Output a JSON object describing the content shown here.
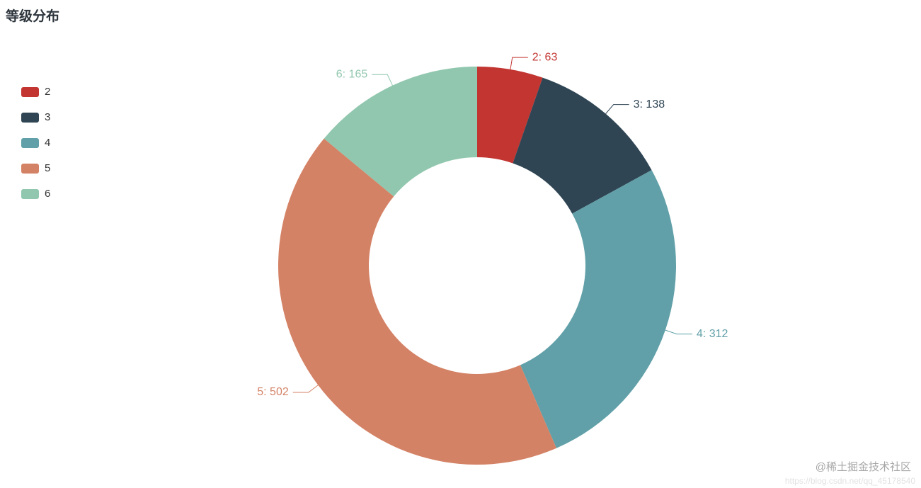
{
  "title": "等级分布",
  "chart_data": {
    "type": "pie",
    "subtype": "donut",
    "title": "等级分布",
    "start_angle_deg": 0,
    "clockwise": true,
    "inner_radius_ratio": 0.545,
    "legend_position": "left",
    "label_format": "{name}: {value}",
    "series": [
      {
        "name": "2",
        "value": 63,
        "color": "#c23531",
        "label": "2: 63"
      },
      {
        "name": "3",
        "value": 138,
        "color": "#2f4554",
        "label": "3: 138"
      },
      {
        "name": "4",
        "value": 312,
        "color": "#61a0a8",
        "label": "4: 312"
      },
      {
        "name": "5",
        "value": 502,
        "color": "#d48265",
        "label": "5: 502"
      },
      {
        "name": "6",
        "value": 165,
        "color": "#91c7ae",
        "label": "6: 165"
      }
    ]
  },
  "legend": {
    "items": [
      "2",
      "3",
      "4",
      "5",
      "6"
    ]
  },
  "watermark": {
    "text": "@稀土掘金技术社区",
    "url": "https://blog.csdn.net/qq_45178540"
  }
}
